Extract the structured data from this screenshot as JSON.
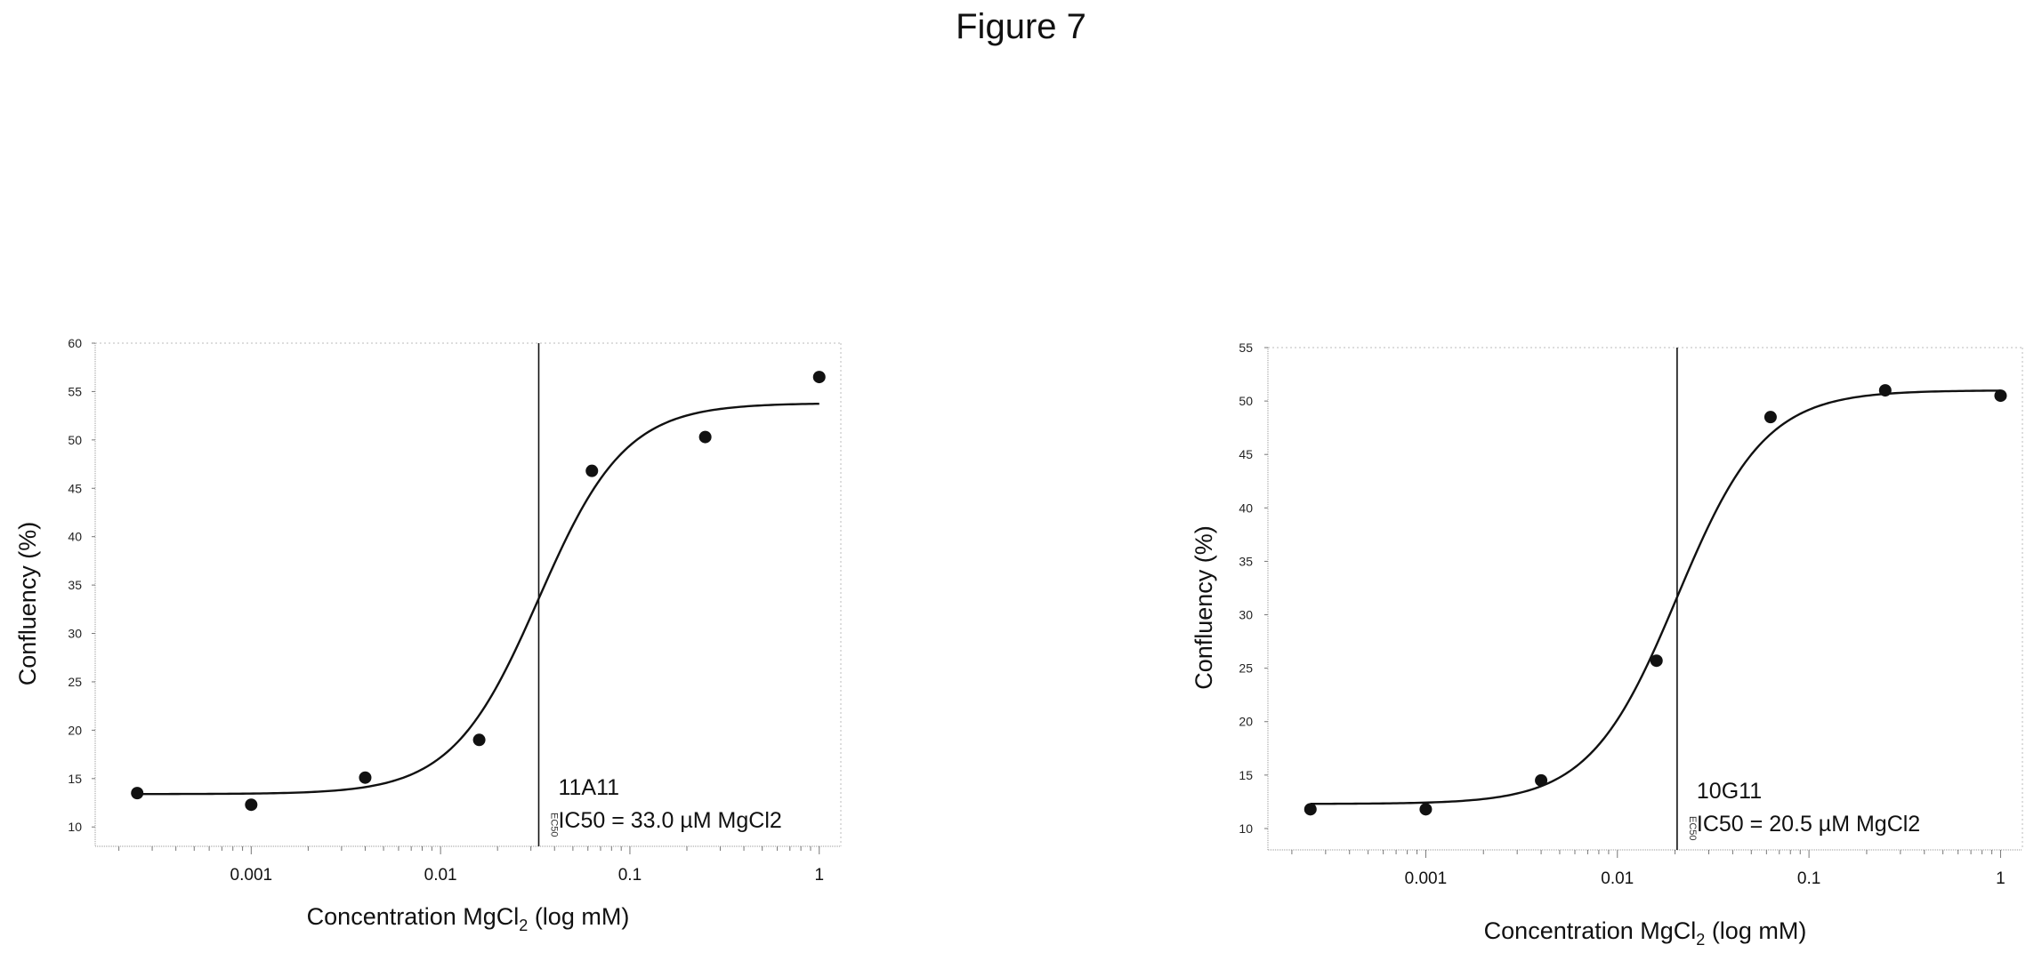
{
  "figure": {
    "title": "Figure 7"
  },
  "chart_data": [
    {
      "type": "scatter",
      "xscale": "log",
      "xlim": [
        0.00015,
        1.3
      ],
      "ylim": [
        8,
        60
      ],
      "x_ticks": [
        {
          "v": 0.001,
          "label": "0.001"
        },
        {
          "v": 0.01,
          "label": "0.01"
        },
        {
          "v": 0.1,
          "label": "0.1"
        },
        {
          "v": 1,
          "label": "1"
        }
      ],
      "y_ticks": [
        {
          "v": 10,
          "label": "10"
        },
        {
          "v": 15,
          "label": "15"
        },
        {
          "v": 20,
          "label": "20"
        },
        {
          "v": 25,
          "label": "25"
        },
        {
          "v": 30,
          "label": "30"
        },
        {
          "v": 35,
          "label": "35"
        },
        {
          "v": 40,
          "label": "40"
        },
        {
          "v": 45,
          "label": "45"
        },
        {
          "v": 50,
          "label": "50"
        },
        {
          "v": 55,
          "label": "55"
        },
        {
          "v": 60,
          "label": "60"
        }
      ],
      "xlabel_main": "Concentration MgCl",
      "xlabel_sub": "2",
      "xlabel_tail": " (log mM)",
      "ylabel": "Confluency (%)",
      "points": [
        {
          "x": 0.00025,
          "y": 13.5
        },
        {
          "x": 0.001,
          "y": 12.3
        },
        {
          "x": 0.004,
          "y": 15.1
        },
        {
          "x": 0.016,
          "y": 19.0
        },
        {
          "x": 0.063,
          "y": 46.8
        },
        {
          "x": 0.25,
          "y": 50.3
        },
        {
          "x": 1.0,
          "y": 56.5
        }
      ],
      "fit": {
        "bottom": 13.4,
        "top": 53.8,
        "ec50": 0.033,
        "hill": 1.9,
        "x_start": 0.00025,
        "x_end": 1.0
      },
      "ec50_x": 0.033,
      "ec50_label": "EC50",
      "annotation": [
        "11A11",
        "IC50 = 33.0 µM MgCl2"
      ]
    },
    {
      "type": "scatter",
      "xscale": "log",
      "xlim": [
        0.00015,
        1.3
      ],
      "ylim": [
        8,
        55
      ],
      "x_ticks": [
        {
          "v": 0.001,
          "label": "0.001"
        },
        {
          "v": 0.01,
          "label": "0.01"
        },
        {
          "v": 0.1,
          "label": "0.1"
        },
        {
          "v": 1,
          "label": "1"
        }
      ],
      "y_ticks": [
        {
          "v": 10,
          "label": "10"
        },
        {
          "v": 15,
          "label": "15"
        },
        {
          "v": 20,
          "label": "20"
        },
        {
          "v": 25,
          "label": "25"
        },
        {
          "v": 30,
          "label": "30"
        },
        {
          "v": 35,
          "label": "35"
        },
        {
          "v": 40,
          "label": "40"
        },
        {
          "v": 45,
          "label": "45"
        },
        {
          "v": 50,
          "label": "50"
        },
        {
          "v": 55,
          "label": "55"
        }
      ],
      "xlabel_main": "Concentration MgCl",
      "xlabel_sub": "2",
      "xlabel_tail": " (log mM)",
      "ylabel": "Confluency (%)",
      "points": [
        {
          "x": 0.00025,
          "y": 11.8
        },
        {
          "x": 0.001,
          "y": 11.8
        },
        {
          "x": 0.004,
          "y": 14.5
        },
        {
          "x": 0.016,
          "y": 25.7
        },
        {
          "x": 0.063,
          "y": 48.5
        },
        {
          "x": 0.25,
          "y": 51.0
        },
        {
          "x": 1.0,
          "y": 50.5
        }
      ],
      "fit": {
        "bottom": 12.3,
        "top": 51.0,
        "ec50": 0.0205,
        "hill": 1.9,
        "x_start": 0.00025,
        "x_end": 1.0
      },
      "ec50_x": 0.0205,
      "ec50_label": "EC50",
      "annotation": [
        "10G11",
        "IC50 = 20.5 µM MgCl2"
      ]
    }
  ]
}
